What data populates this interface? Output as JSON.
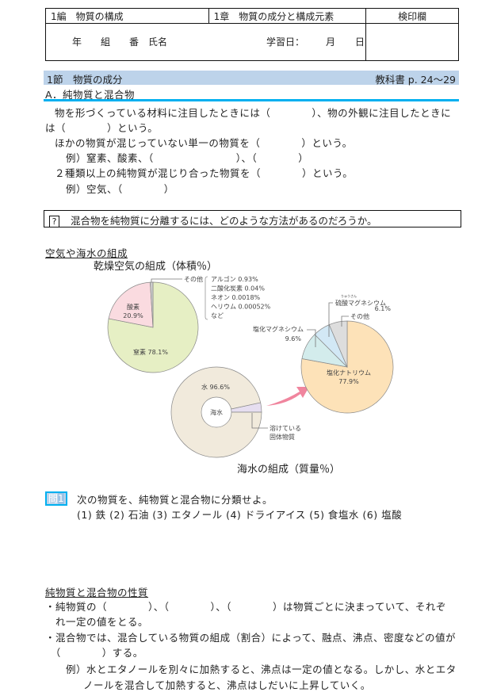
{
  "header": {
    "part": "1編　物質の構成",
    "chapter": "1章　物質の成分と構成元素",
    "stamp": "検印欄",
    "name_line": "年　　組　　番　氏名",
    "date_label": "学習日：",
    "month": "月",
    "day": "日"
  },
  "section": {
    "title": "1節　物質の成分",
    "textbook": "教科書 p. 24～29"
  },
  "subsection": "A．純物質と混合物",
  "body_lines": [
    "物を形づくっている材料に注目したときには（　　　　）、物の外観に注目したときに",
    "は（　　　　）という。",
    "ほかの物質が混じっていない単一の物質を（　　　　）という。",
    "例）窒素、酸素、（　　　　　　　　）、（　　　　）",
    "２種類以上の純物質が混じり合った物質を（　　　　）という。",
    "例）空気、（　　　　）"
  ],
  "question": {
    "mark": "?",
    "text": "混合物を純物質に分離するには、どのような方法があるのだろうか。"
  },
  "composition_heading": "空気や海水の組成",
  "air_chart": {
    "title": "乾燥空気の組成（体積％）",
    "slices": [
      {
        "label": "窒素 78.1%",
        "value": 78.1,
        "color": "#e6efc4"
      },
      {
        "label": "酸素\n20.9%",
        "value": 20.9,
        "color": "#fadbe0"
      },
      {
        "label": "その他",
        "value": 1.0,
        "color": "#cccccc"
      }
    ],
    "others_list": [
      "アルゴン 0.93%",
      "二酸化炭素 0.04%",
      "ネオン 0.0018%",
      "ヘリウム 0.00052%",
      "など"
    ]
  },
  "seawater_chart": {
    "title": "海水の組成（質量％）",
    "center_label": "海水",
    "slices": [
      {
        "label": "水 96.6%",
        "value": 96.6,
        "color": "#f1eadc"
      },
      {
        "label": "溶けている\n固体物質",
        "value": 3.4,
        "color": "#e6def0"
      }
    ]
  },
  "solids_chart": {
    "slices": [
      {
        "label": "塩化ナトリウム\n77.9%",
        "value": 77.9,
        "color": "#fde2b8"
      },
      {
        "label": "塩化マグネシウム\n9.6%",
        "value": 9.6,
        "color": "#d3ecec"
      },
      {
        "label": "硫酸マグネシウム\n6.1%",
        "value": 6.1,
        "color": "#d2e8f5"
      },
      {
        "label": "その他",
        "value": 6.4,
        "color": "#dddddd"
      }
    ],
    "ruby": "りゅうさん",
    "arrow_color": "#f0859e"
  },
  "problem1": {
    "badge_a": "問",
    "badge_b": "1",
    "text": "次の物質を、純物質と混合物に分類せよ。",
    "items": "(1) 鉄 (2) 石油 (3) エタノール (4) ドライアイス (5) 食塩水 (6) 塩酸"
  },
  "properties": {
    "heading": "純物質と混合物の性質",
    "lines": [
      "・純物質の（　　　　）、（　　　　）、（　　　　）は物質ごとに決まっていて、それぞ",
      "　れ一定の値をとる。",
      "・混合物では、混合している物質の組成（割合）によって、融点、沸点、密度などの値が",
      "　（　　　　）する。",
      "例）水とエタノールを別々に加熱すると、沸点は一定の値となる。しかし、水とエタ",
      "ノールを混合して加熱すると、沸点はしだいに上昇していく。"
    ]
  }
}
